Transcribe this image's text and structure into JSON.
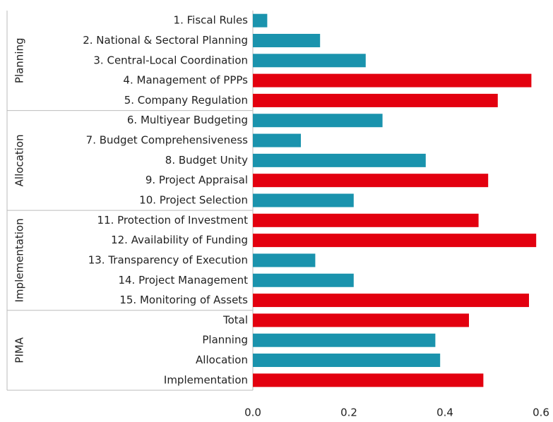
{
  "chart_data": {
    "type": "bar",
    "orientation": "horizontal",
    "groups": [
      {
        "name": "Planning",
        "categories": [
          "1. Fiscal Rules",
          "2. National & Sectoral Planning",
          "3. Central-Local Coordination",
          "4. Management of PPPs",
          "5. Company Regulation"
        ],
        "values": [
          0.03,
          0.14,
          0.235,
          0.58,
          0.51
        ],
        "colors": [
          "#1a93ad",
          "#1a93ad",
          "#1a93ad",
          "#e3000f",
          "#e3000f"
        ]
      },
      {
        "name": "Allocation",
        "categories": [
          "6. Multiyear Budgeting",
          "7. Budget Comprehensiveness",
          "8. Budget Unity",
          "9. Project Appraisal",
          "10. Project Selection"
        ],
        "values": [
          0.27,
          0.1,
          0.36,
          0.49,
          0.21
        ],
        "colors": [
          "#1a93ad",
          "#1a93ad",
          "#1a93ad",
          "#e3000f",
          "#1a93ad"
        ]
      },
      {
        "name": "Implementation",
        "categories": [
          "11. Protection of Investment",
          "12. Availability of Funding",
          "13. Transparency of Execution",
          "14. Project Management",
          "15. Monitoring of Assets"
        ],
        "values": [
          0.47,
          0.59,
          0.13,
          0.21,
          0.575
        ],
        "colors": [
          "#e3000f",
          "#e3000f",
          "#1a93ad",
          "#1a93ad",
          "#e3000f"
        ]
      },
      {
        "name": "PIMA",
        "categories": [
          "Total",
          "Planning",
          "Allocation",
          "Implementation"
        ],
        "values": [
          0.45,
          0.38,
          0.39,
          0.48
        ],
        "colors": [
          "#e3000f",
          "#1a93ad",
          "#1a93ad",
          "#e3000f"
        ]
      }
    ],
    "xlim": [
      0,
      0.6
    ],
    "xticks": [
      {
        "value": 0,
        "label": "0.0"
      },
      {
        "value": 0.2,
        "label": "0.2"
      },
      {
        "value": 0.4,
        "label": "0.4"
      },
      {
        "value": 0.6,
        "label": "0.6"
      }
    ]
  }
}
